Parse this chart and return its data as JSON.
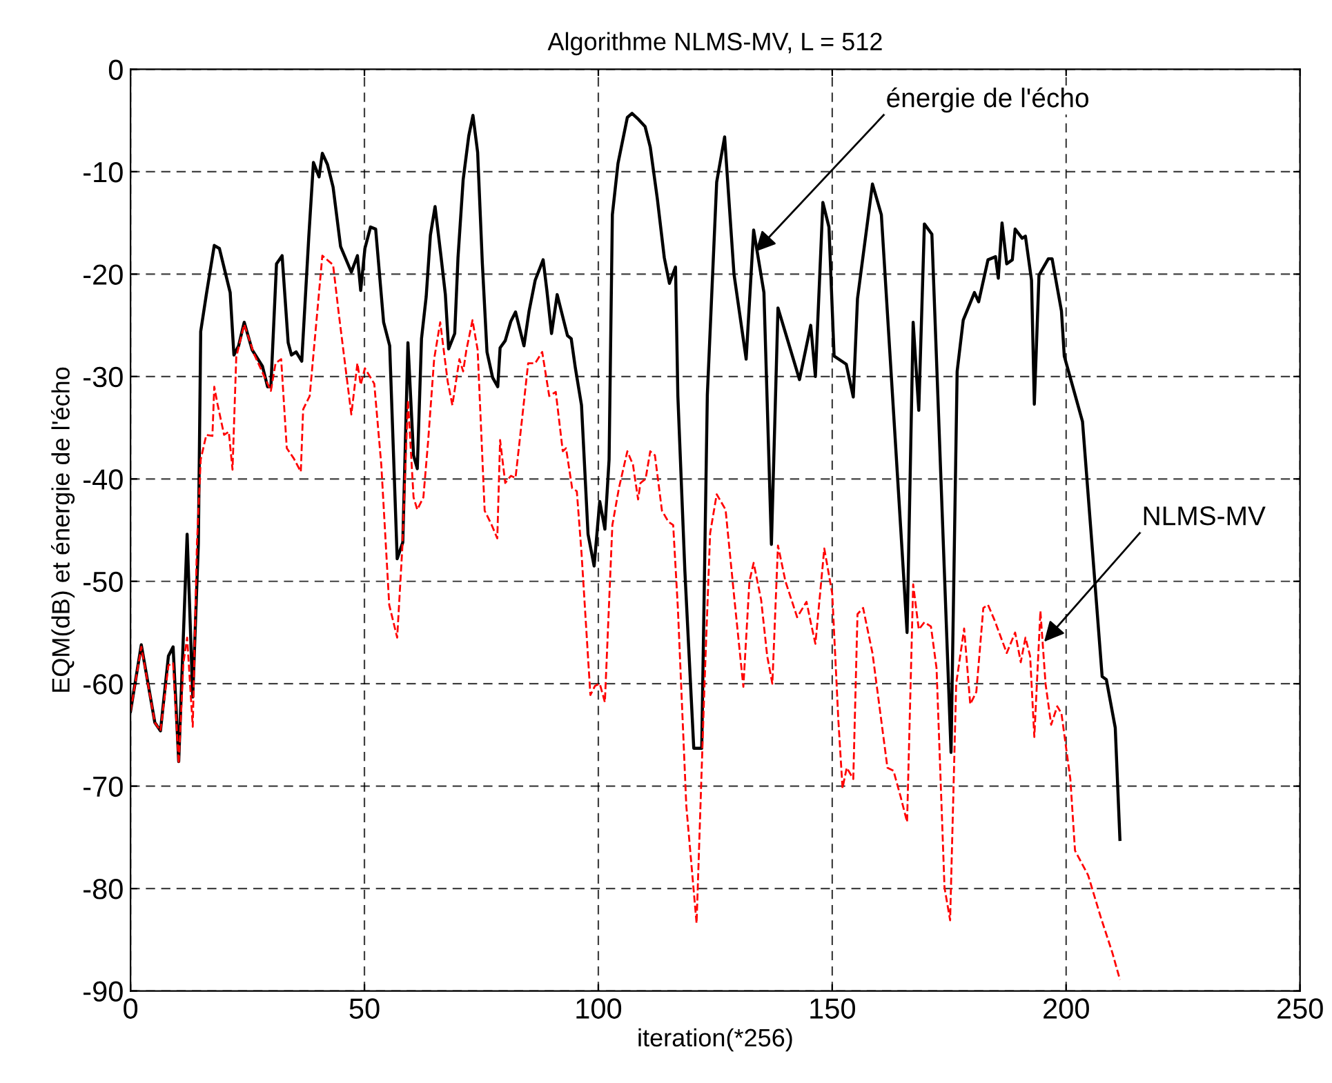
{
  "chart_data": {
    "type": "line",
    "title": "Algorithme NLMS-MV, L = 512",
    "xlabel": "iteration(*256)",
    "ylabel": "EQM(dB) et énergie de l'écho",
    "xlim": [
      0,
      250
    ],
    "xticks": [
      0,
      50,
      100,
      150,
      200,
      250
    ],
    "ylim": [
      -90,
      0
    ],
    "yticks": [
      -90,
      -80,
      -70,
      -60,
      -50,
      -40,
      -30,
      -20,
      -10,
      0
    ],
    "grid": true,
    "legend": false,
    "annotations": [
      {
        "text": "énergie de l'écho",
        "x": 133.6,
        "y": -17.8
      },
      {
        "text": "NLMS-MV",
        "x": 195.3,
        "y": -55.9
      }
    ],
    "series": [
      {
        "color": "#000000",
        "line_style": "solid",
        "x": [
          0,
          2.3,
          5.2,
          6.4,
          8.1,
          9.1,
          10.3,
          12.1,
          13.3,
          14.5,
          15,
          16.2,
          17.9,
          19,
          21.3,
          22.1,
          23.1,
          24.3,
          26,
          28.2,
          29.3,
          30,
          31.2,
          32.4,
          33.7,
          34.4,
          35.4,
          36.6,
          38.1,
          39.1,
          40.3,
          41,
          42.1,
          43.3,
          44.9,
          47.2,
          48.5,
          49.2,
          50.1,
          51.3,
          52.4,
          54.1,
          55.4,
          57,
          58.2,
          59.3,
          60.5,
          61.3,
          62.2,
          63.2,
          64.1,
          65.1,
          66.4,
          67.3,
          68,
          69.3,
          70,
          71.1,
          72.3,
          73.2,
          74.2,
          75.2,
          76.2,
          77.4,
          78.5,
          79,
          80.1,
          81.3,
          82.3,
          84.1,
          85.2,
          86.5,
          88.2,
          89,
          90,
          91.2,
          93.4,
          94.2,
          95.1,
          96.4,
          97.8,
          99.1,
          100.3,
          101.4,
          102.3,
          103,
          104.2,
          106.2,
          107.2,
          108.6,
          110,
          111.1,
          112.6,
          114.1,
          115.2,
          116.5,
          117,
          118.5,
          120.4,
          122.1,
          123.3,
          125.3,
          127,
          129,
          131.6,
          133.2,
          135.4,
          137,
          138.4,
          143,
          145.4,
          146.4,
          148,
          149.3,
          150.4,
          153,
          154.5,
          155.4,
          158.6,
          160.5,
          164.3,
          166,
          167.3,
          168.5,
          169.7,
          171.3,
          175.4,
          176.7,
          178,
          180.4,
          181.3,
          183.3,
          184.9,
          185.5,
          186.3,
          187.3,
          188.5,
          189.1,
          190.6,
          191.3,
          192.6,
          193.2,
          194.2,
          196.2,
          197,
          199,
          199.6,
          203.5,
          207.7,
          208.6,
          210.5,
          211.5
        ],
        "values": [
          -62.7,
          -56.2,
          -63.8,
          -64.6,
          -57.3,
          -56.4,
          -67.6,
          -45.4,
          -61.3,
          -46.3,
          -25.6,
          -22,
          -17.2,
          -17.5,
          -21.8,
          -27.9,
          -27,
          -24.7,
          -27.4,
          -29,
          -31,
          -31,
          -19,
          -18.2,
          -26.7,
          -27.9,
          -27.6,
          -28.5,
          -16.4,
          -9.1,
          -10.5,
          -8.2,
          -9.3,
          -11.5,
          -17.3,
          -19.8,
          -18.2,
          -21.6,
          -17.5,
          -15.4,
          -15.6,
          -24.7,
          -27,
          -47.8,
          -46.2,
          -26.7,
          -37.7,
          -39,
          -26.3,
          -22.2,
          -16.2,
          -13.4,
          -18.4,
          -22,
          -27.3,
          -25.8,
          -18.4,
          -10.8,
          -6.5,
          -4.5,
          -8.1,
          -18.9,
          -27.6,
          -30.1,
          -31,
          -27.2,
          -26.5,
          -24.6,
          -23.7,
          -27,
          -23.6,
          -20.6,
          -18.6,
          -21.6,
          -25.8,
          -22,
          -26,
          -26.3,
          -29.2,
          -32.8,
          -45.4,
          -48.5,
          -42.2,
          -44.9,
          -38.1,
          -14.2,
          -9.2,
          -4.7,
          -4.3,
          -4.9,
          -5.6,
          -7.6,
          -12.6,
          -18.4,
          -20.9,
          -19.3,
          -31.9,
          -49,
          -66.3,
          -66.3,
          -31.8,
          -11,
          -6.6,
          -20,
          -28.3,
          -15.7,
          -21.8,
          -46.4,
          -23.3,
          -30.3,
          -25,
          -30,
          -13,
          -15.4,
          -28,
          -28.8,
          -32,
          -22.4,
          -11.2,
          -14.2,
          -42.3,
          -55,
          -24.7,
          -33.3,
          -15.1,
          -16.1,
          -66.7,
          -29.5,
          -24.5,
          -21.8,
          -22.7,
          -18.6,
          -18.3,
          -20.4,
          -15,
          -19,
          -18.6,
          -15.6,
          -16.5,
          -16.3,
          -20.6,
          -32.7,
          -20.1,
          -18.5,
          -18.5,
          -23.6,
          -28,
          -34.4,
          -59.3,
          -59.6,
          -64.3,
          -75.2
        ]
      },
      {
        "color": "#ff0000",
        "line_style": "dashed",
        "x": [
          0,
          2.3,
          5.2,
          6.4,
          8.1,
          9.1,
          10.3,
          11.3,
          12.1,
          13.3,
          14.2,
          15,
          16.2,
          17.5,
          17.9,
          18.6,
          20,
          21,
          21.8,
          22.6,
          24.3,
          26.4,
          30,
          31,
          32.2,
          33.4,
          34.9,
          36.4,
          36.9,
          38.3,
          41,
          43.3,
          44.5,
          47.2,
          48.5,
          49.2,
          50.1,
          52.1,
          53.6,
          55.3,
          57,
          58.1,
          59.3,
          60.5,
          61.3,
          62.6,
          63.6,
          64.9,
          66.2,
          67.8,
          68.8,
          70.3,
          71.1,
          71.8,
          73.1,
          74.2,
          75.7,
          77.2,
          78.4,
          79,
          80.1,
          81.3,
          82.3,
          83.8,
          85,
          86.5,
          88,
          89.5,
          90.9,
          92.4,
          93.1,
          94.4,
          95.4,
          96.4,
          98.3,
          99.3,
          100.3,
          101.4,
          103,
          104.4,
          106.2,
          107.4,
          108.5,
          109,
          110.1,
          111.1,
          112.1,
          113.6,
          115,
          116,
          117,
          118.8,
          121,
          122.7,
          123.9,
          125.3,
          127.2,
          129.1,
          131,
          132.3,
          133.2,
          134.8,
          136.1,
          137.2,
          138.4,
          140,
          142.5,
          144.5,
          145.4,
          146.4,
          148.3,
          150,
          151.3,
          152.2,
          153.1,
          154.5,
          155.4,
          156.6,
          158.6,
          161.8,
          163.1,
          164.6,
          166,
          167.3,
          168.5,
          169.7,
          171.1,
          172.3,
          174,
          175.2,
          176.5,
          178.2,
          179.5,
          180.8,
          182.3,
          183.3,
          184.7,
          187.3,
          189.1,
          190.3,
          191.3,
          192.3,
          193.2,
          194.5,
          195.6,
          196.8,
          198.1,
          199,
          200.9,
          201.9,
          204.7,
          207.4,
          209.9,
          211.5
        ],
        "values": [
          -62.7,
          -56.4,
          -63.8,
          -64.6,
          -58.2,
          -58,
          -67.8,
          -58,
          -55.5,
          -64.2,
          -46.3,
          -38.1,
          -35.7,
          -35.8,
          -31,
          -32.7,
          -35.7,
          -35.4,
          -39.1,
          -28.1,
          -24.9,
          -27.8,
          -31.4,
          -28.7,
          -28.3,
          -37,
          -38,
          -39.3,
          -33.2,
          -31.9,
          -18.2,
          -19.1,
          -23.8,
          -33.7,
          -28.7,
          -30.8,
          -29.2,
          -30.7,
          -38.6,
          -52.3,
          -55.5,
          -46.7,
          -32.3,
          -41.8,
          -43,
          -41.8,
          -36.4,
          -28.3,
          -24.7,
          -30.5,
          -32.8,
          -28.3,
          -29.5,
          -27.4,
          -24.5,
          -27.4,
          -43.1,
          -44.5,
          -45.8,
          -36.2,
          -40.4,
          -39.7,
          -39.9,
          -33.7,
          -28.7,
          -28.7,
          -27.6,
          -31.9,
          -31.5,
          -37.3,
          -37,
          -40.9,
          -41.2,
          -47.2,
          -61.1,
          -60.2,
          -60,
          -61.8,
          -44.5,
          -40.9,
          -37.3,
          -38.6,
          -42,
          -40.4,
          -40,
          -37.3,
          -37.7,
          -43.1,
          -44.2,
          -44.5,
          -52.6,
          -71.9,
          -83.4,
          -60,
          -45.3,
          -41.5,
          -43,
          -51.8,
          -60.3,
          -50,
          -48.2,
          -51.8,
          -57.3,
          -60,
          -46.5,
          -50,
          -53.5,
          -52,
          -54,
          -56.1,
          -46.8,
          -51.2,
          -63.5,
          -70.2,
          -68.2,
          -69.3,
          -53.2,
          -52.6,
          -57,
          -68.2,
          -68.5,
          -71,
          -73.5,
          -50.3,
          -54.7,
          -54,
          -54.4,
          -58.5,
          -79.9,
          -83.1,
          -60,
          -54.6,
          -62,
          -60.8,
          -52.6,
          -52.3,
          -53.8,
          -57,
          -55,
          -57.9,
          -55.5,
          -57.3,
          -65.2,
          -52.9,
          -60,
          -64,
          -62.2,
          -62.9,
          -69.3,
          -76.3,
          -78.7,
          -82.8,
          -86.3,
          -88.9
        ]
      }
    ]
  }
}
